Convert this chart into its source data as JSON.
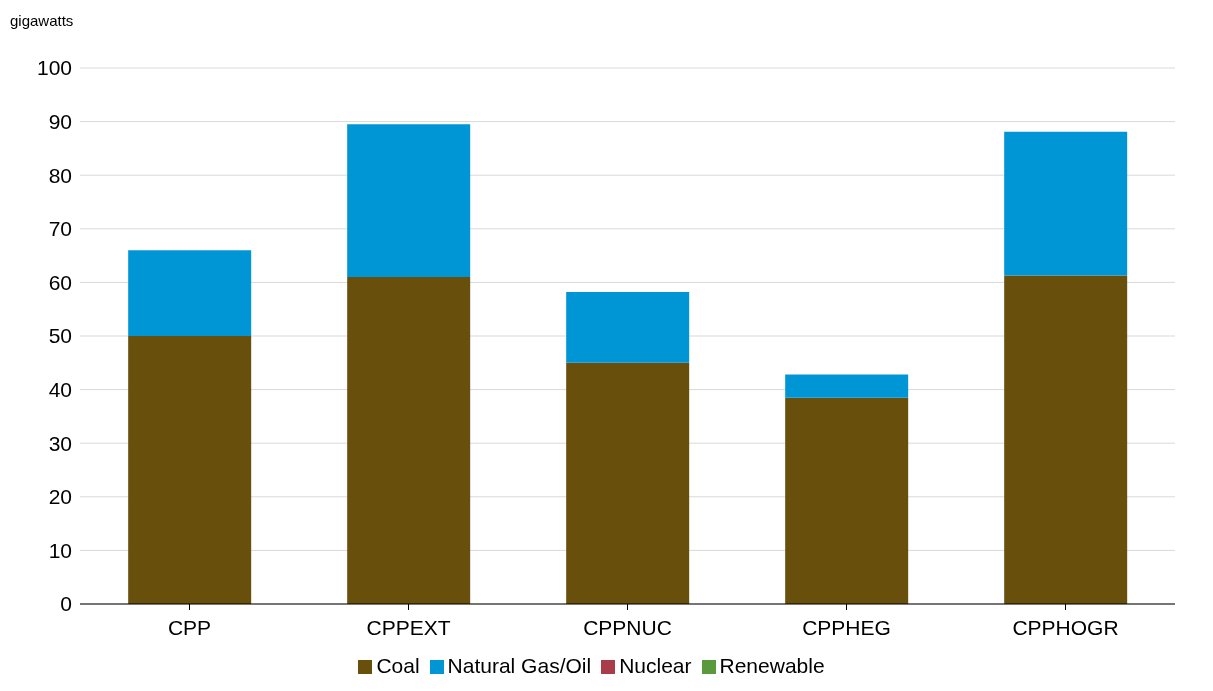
{
  "chart_data": {
    "type": "bar",
    "ylabel": "gigawatts",
    "stacked": true,
    "categories": [
      "CPP",
      "CPPEXT",
      "CPPNUC",
      "CPPHEG",
      "CPPHOGR"
    ],
    "series": [
      {
        "name": "Coal",
        "color": "#684f0b",
        "values": [
          50,
          61,
          45,
          38.5,
          61.3
        ]
      },
      {
        "name": "Natural Gas/Oil",
        "color": "#0096d6",
        "values": [
          16,
          28.5,
          13.2,
          4.3,
          26.8
        ]
      },
      {
        "name": "Nuclear",
        "color": "#a83c4a",
        "values": [
          0,
          0,
          0,
          0,
          0
        ]
      },
      {
        "name": "Renewable",
        "color": "#5b9a3c",
        "values": [
          0,
          0,
          0,
          0,
          0
        ]
      }
    ],
    "ylim": [
      0,
      100
    ],
    "yticks": [
      0,
      10,
      20,
      30,
      40,
      50,
      60,
      70,
      80,
      90,
      100
    ],
    "grid": "y",
    "legend": "bottom"
  }
}
